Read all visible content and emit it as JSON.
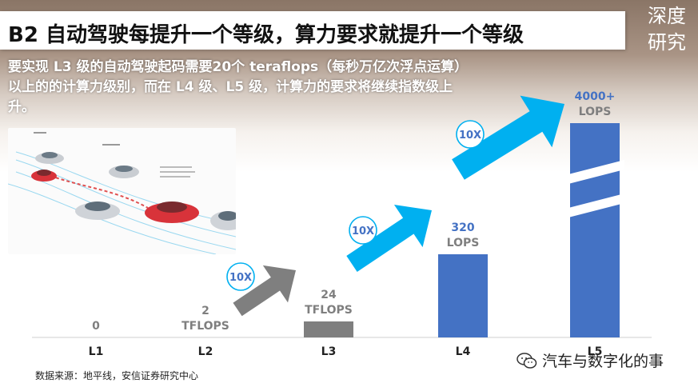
{
  "title": "B2 自动驾驶每提升一个等级，算力要求就提升一个等级",
  "corner_label": [
    "深度",
    "研究"
  ],
  "intro_text": "要实现 L3 级的自动驾驶起码需要20个 teraflops（每秒万亿次浮点运算）以上的的计算力级别，而在 L4 级、L5 级，计算力的要求将继续指数级上升。",
  "source_text": "数据来源：地平线，安信证券研究中心",
  "watermark_text": "汽车与数字化的事",
  "colors": {
    "bar_blue": "#4472c4",
    "bar_gray": "#7f7f7f",
    "arrow_blue": "#00b0f0",
    "arrow_gray": "#7f7f7f",
    "label_blue": "#4472c4",
    "label_gray": "#7f7f7f"
  },
  "chart_data": {
    "type": "bar",
    "categories": [
      "L1",
      "L2",
      "L3",
      "L4",
      "L5"
    ],
    "values": [
      0,
      2,
      24,
      320,
      4000
    ],
    "value_labels": [
      [
        "0"
      ],
      [
        "2",
        "TFLOPS"
      ],
      [
        "24",
        "TFLOPS"
      ],
      [
        "320",
        "LOPS"
      ],
      [
        "4000+",
        "LOPS"
      ]
    ],
    "multipliers": [
      "10X",
      "10X",
      "10X"
    ],
    "scale": "non-linear, L5 bar shown with axis break"
  }
}
